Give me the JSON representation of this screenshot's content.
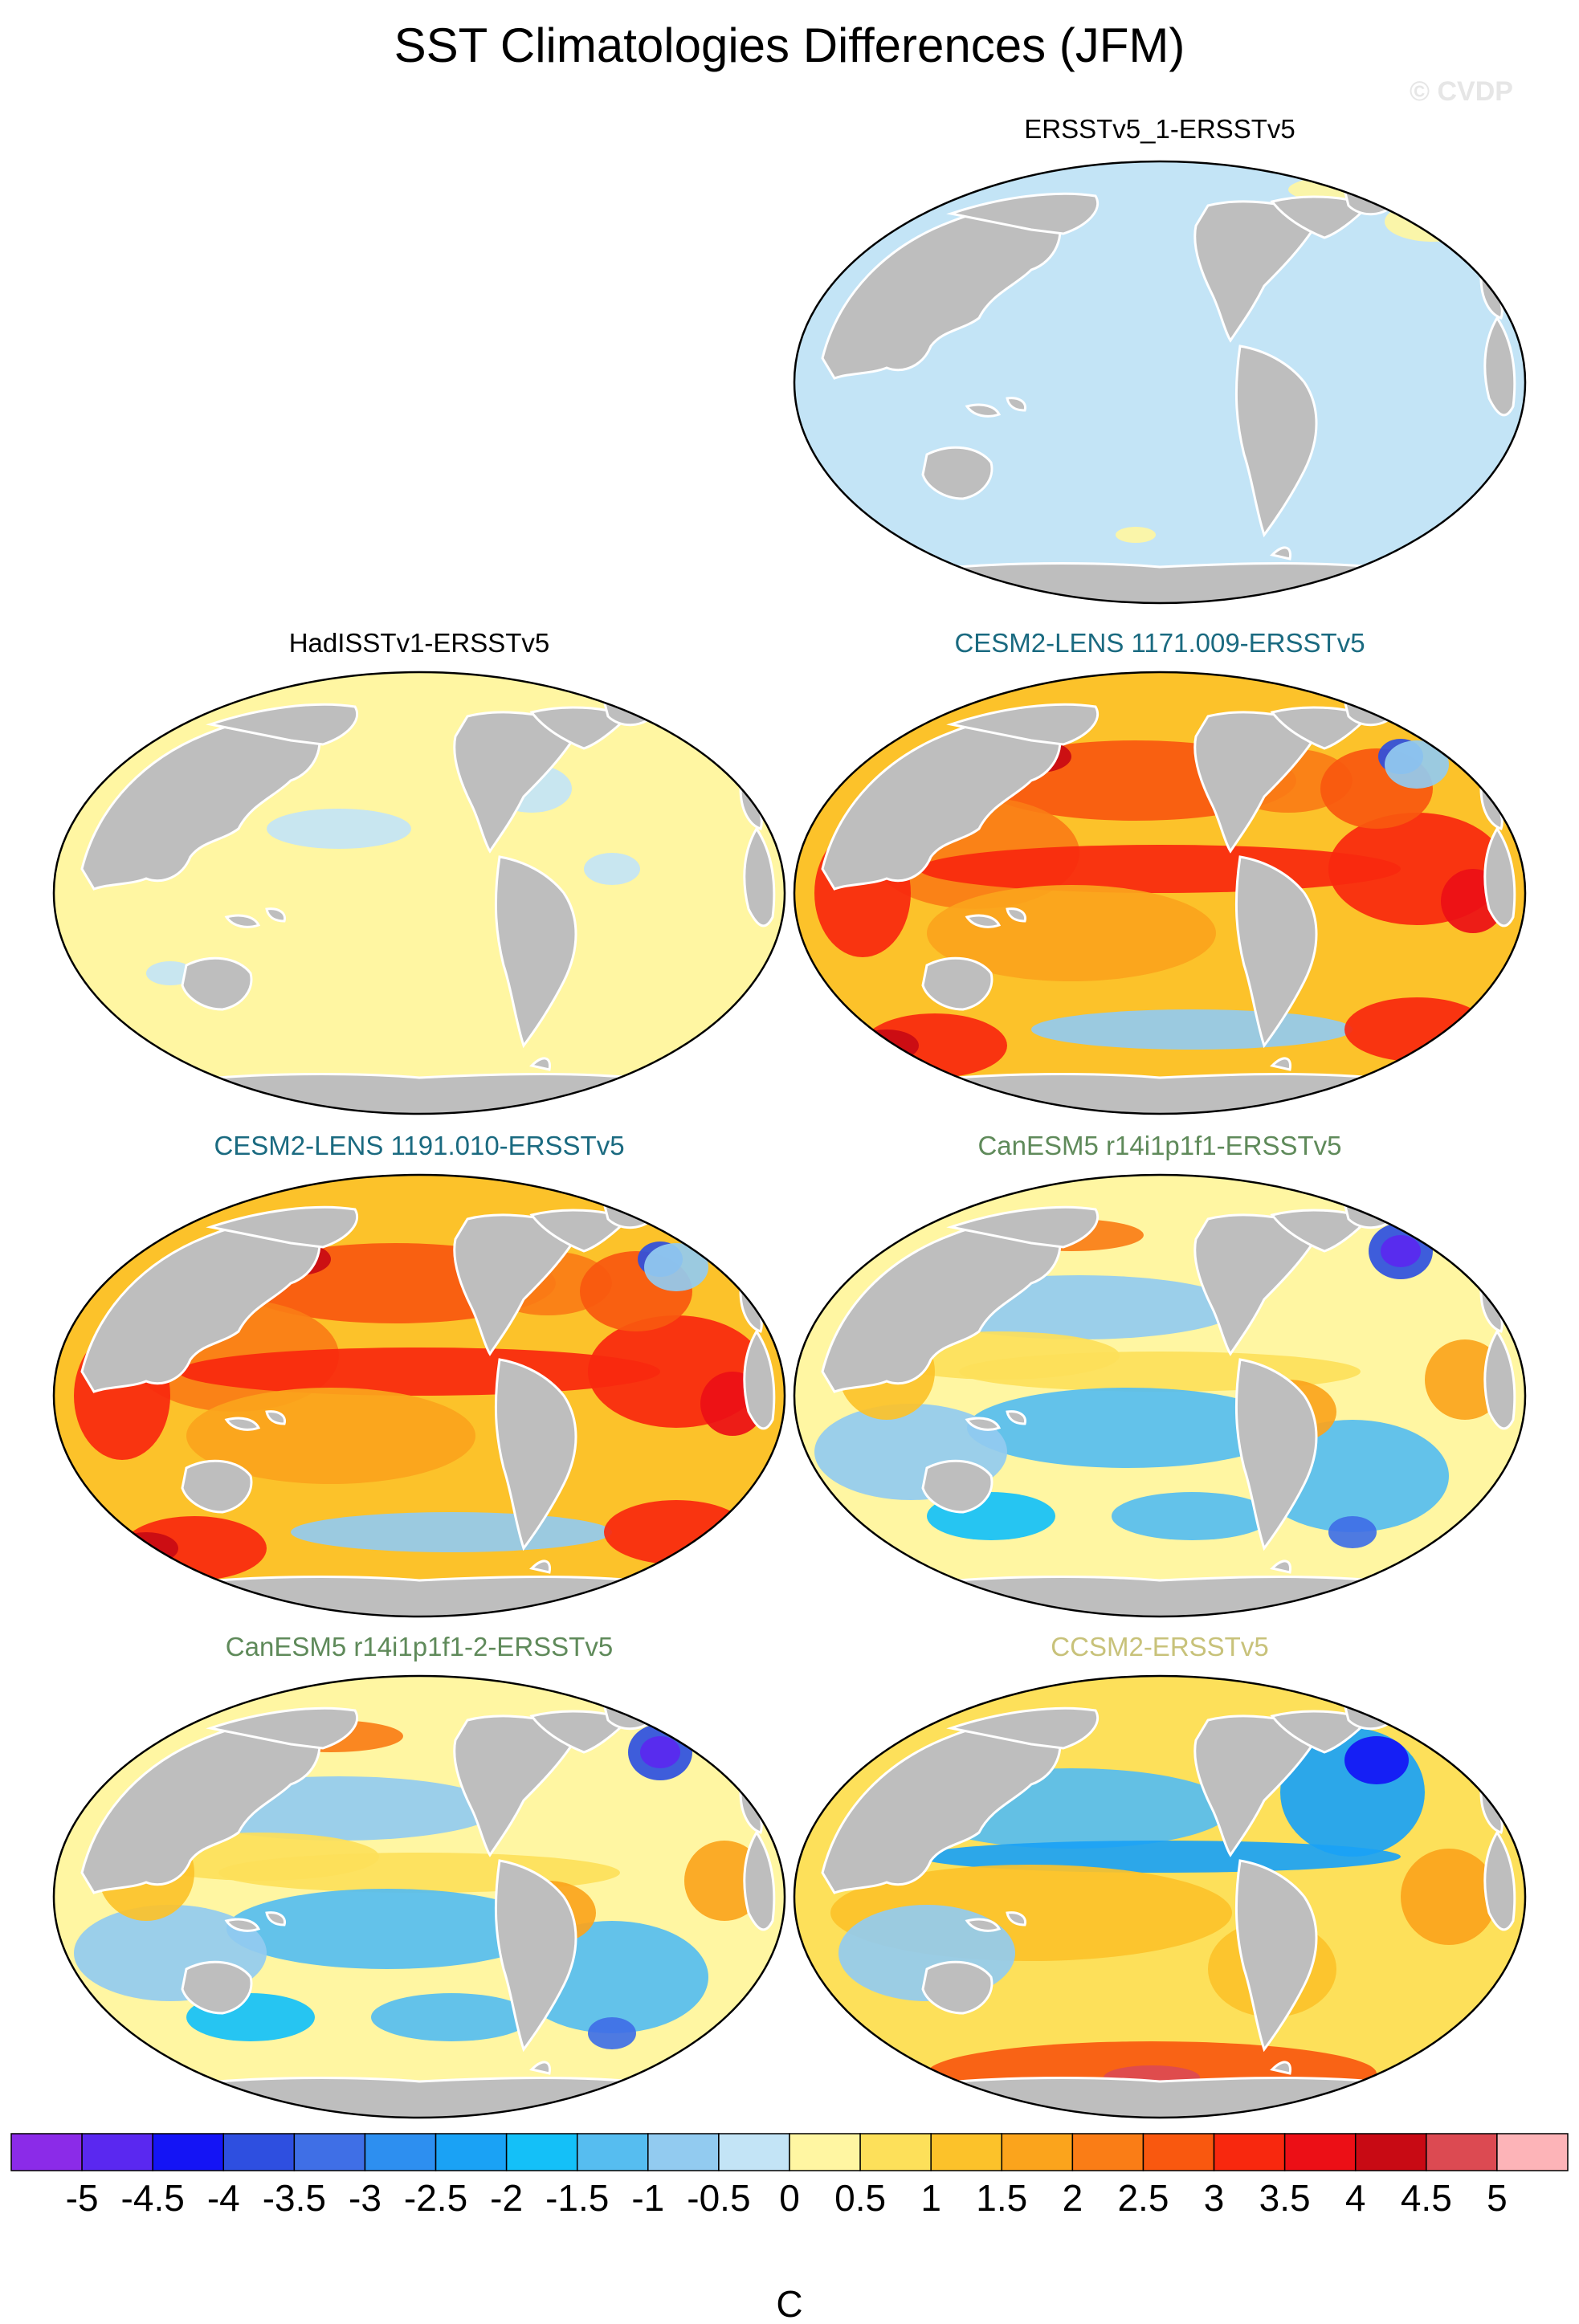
{
  "title": "SST Climatologies Differences (JFM)",
  "watermark": "© CVDP",
  "colors": {
    "land": "#bebebe",
    "coast": "#ffffff",
    "outline": "#000000"
  },
  "chart_data": {
    "type": "heatmap",
    "units": "C",
    "colorbar": {
      "colors": [
        "#8b2be8",
        "#5a28f0",
        "#1414f5",
        "#2e4fe0",
        "#3f6fe6",
        "#2d8ff0",
        "#1aa2f5",
        "#14c0f8",
        "#56bdf0",
        "#92cbf0",
        "#c3e4f6",
        "#fff6a2",
        "#fde05a",
        "#fcc22a",
        "#fba41c",
        "#fa7d16",
        "#f9580f",
        "#f8280e",
        "#ec0f16",
        "#c80a14",
        "#dc4a52",
        "#fdb4b8"
      ],
      "levels": [
        "-5",
        "-4.5",
        "-4",
        "-3.5",
        "-3",
        "-2.5",
        "-2",
        "-1.5",
        "-1",
        "-0.5",
        "0",
        "0.5",
        "1",
        "1.5",
        "2",
        "2.5",
        "3",
        "3.5",
        "4",
        "4.5",
        "5"
      ]
    },
    "panels": [
      {
        "title": "ERSSTv5_1-ERSSTv5",
        "title_color": "#000000",
        "pattern": "zero"
      },
      {
        "title": "HadISSTv1-ERSSTv5",
        "title_color": "#000000",
        "pattern": "light"
      },
      {
        "title": "CESM2-LENS 1171.009-ERSSTv5",
        "title_color": "#1a6a80",
        "pattern": "warm"
      },
      {
        "title": "CESM2-LENS 1191.010-ERSSTv5",
        "title_color": "#1a6a80",
        "pattern": "warm"
      },
      {
        "title": "CanESM5 r14i1p1f1-ERSSTv5",
        "title_color": "#5f8a5a",
        "pattern": "mixed"
      },
      {
        "title": "CanESM5 r14i1p1f1-2-ERSSTv5",
        "title_color": "#5f8a5a",
        "pattern": "mixed"
      },
      {
        "title": "CCSM2-ERSSTv5",
        "title_color": "#c8c27a",
        "pattern": "mixed2"
      }
    ]
  }
}
